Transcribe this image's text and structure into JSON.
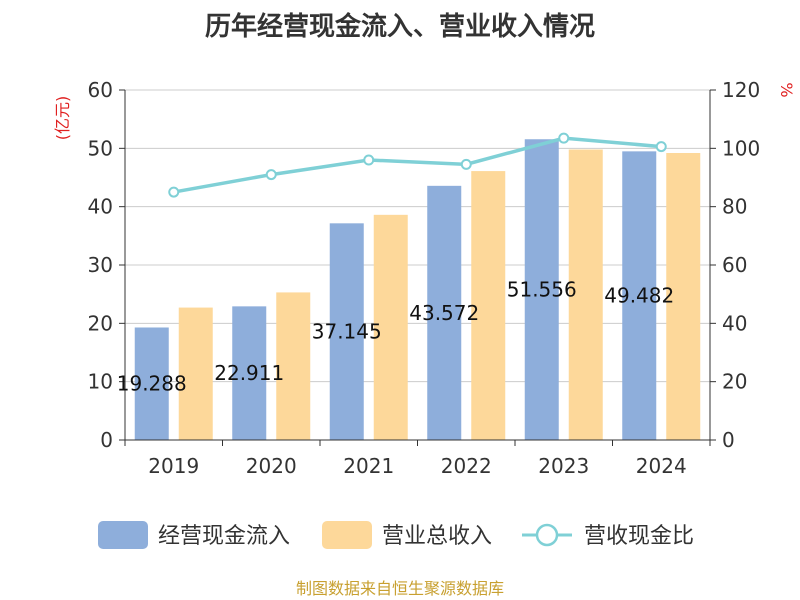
{
  "title": "历年经营现金流入、营业收入情况",
  "colors": {
    "cash": "#8eaedb",
    "revenue": "#fdd89a",
    "ratio": "#7fd0d6",
    "unit": "#e02020",
    "source": "#c8a030"
  },
  "chart_data": {
    "type": "bar",
    "title": "历年经营现金流入、营业收入情况",
    "categories": [
      "2019",
      "2020",
      "2021",
      "2022",
      "2023",
      "2024"
    ],
    "y_left": {
      "label": "(亿元)",
      "range": [
        0,
        60
      ],
      "ticks": [
        "0",
        "10",
        "20",
        "30",
        "40",
        "50",
        "60"
      ]
    },
    "y_right": {
      "label": "%",
      "range": [
        0,
        120
      ],
      "ticks": [
        "0",
        "20",
        "40",
        "60",
        "80",
        "100",
        "120"
      ]
    },
    "grid": true,
    "legend_position": "bottom",
    "series": [
      {
        "name": "经营现金流入",
        "type": "bar",
        "axis": "left",
        "values": [
          19.288,
          22.911,
          37.145,
          43.572,
          51.556,
          49.482
        ],
        "labels": [
          "19.288",
          "22.911",
          "37.145",
          "43.572",
          "51.556",
          "49.482"
        ]
      },
      {
        "name": "营业总收入",
        "type": "bar",
        "axis": "left",
        "values": [
          22.7,
          25.3,
          38.6,
          46.1,
          49.8,
          49.2
        ]
      },
      {
        "name": "营收现金比",
        "type": "line",
        "axis": "right",
        "values": [
          85,
          91,
          96,
          94.5,
          103.5,
          100.6
        ]
      }
    ]
  },
  "source": "制图数据来自恒生聚源数据库"
}
